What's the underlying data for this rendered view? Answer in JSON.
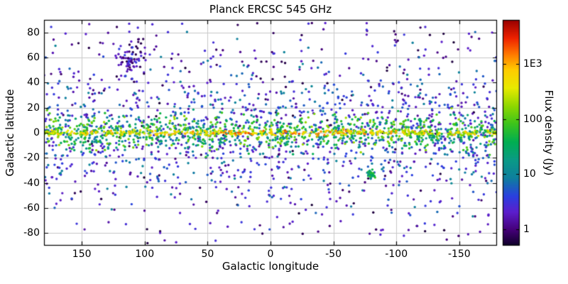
{
  "chart_data": {
    "type": "scatter",
    "title": "Planck ERCSC 545 GHz",
    "xlabel": "Galactic longitude",
    "ylabel": "Galactic latitude",
    "xlim": [
      180,
      -180
    ],
    "ylim": [
      -90,
      90
    ],
    "grid": true,
    "grid_color": "#c8c8c8",
    "frame_color": "#000000",
    "background_color": "#ffffff",
    "x_ticks": [
      {
        "label": "150",
        "value": 150
      },
      {
        "label": "100",
        "value": 100
      },
      {
        "label": "50",
        "value": 50
      },
      {
        "label": "0",
        "value": 0
      },
      {
        "label": "-50",
        "value": -50
      },
      {
        "label": "-100",
        "value": -100
      },
      {
        "label": "-150",
        "value": -150
      }
    ],
    "y_ticks": [
      {
        "label": "80",
        "value": 80
      },
      {
        "label": "60",
        "value": 60
      },
      {
        "label": "40",
        "value": 40
      },
      {
        "label": "20",
        "value": 20
      },
      {
        "label": "0",
        "value": 0
      },
      {
        "label": "-20",
        "value": -20
      },
      {
        "label": "-40",
        "value": -40
      },
      {
        "label": "-60",
        "value": -60
      },
      {
        "label": "-80",
        "value": -80
      }
    ],
    "colorbar": {
      "label": "Flux density (Jy)",
      "scale": "log",
      "log_range": [
        -0.3,
        3.8
      ],
      "ticks": [
        {
          "label": "1E3",
          "value": 1000
        },
        {
          "label": "100",
          "value": 100
        },
        {
          "label": "10",
          "value": 10
        },
        {
          "label": "1",
          "value": 1
        }
      ],
      "colormap_stops": [
        [
          0.0,
          "#0d0026"
        ],
        [
          0.07,
          "#440077"
        ],
        [
          0.15,
          "#5c1ecc"
        ],
        [
          0.22,
          "#2a3fe0"
        ],
        [
          0.3,
          "#0e7f9e"
        ],
        [
          0.38,
          "#0a9a86"
        ],
        [
          0.46,
          "#00ae52"
        ],
        [
          0.54,
          "#3cc41c"
        ],
        [
          0.62,
          "#8fd800"
        ],
        [
          0.7,
          "#e8ea00"
        ],
        [
          0.78,
          "#ffcc00"
        ],
        [
          0.85,
          "#ff7700"
        ],
        [
          0.92,
          "#ee2200"
        ],
        [
          1.0,
          "#990000"
        ]
      ]
    },
    "points": {
      "description": "Planck Early Release Compact Source Catalogue sources at 545 GHz in galactic coordinates, colored by log flux density. Bright (yellow/orange/red, >100 Jy) sources concentrated in the galactic plane |b|<2; green 10-100 Jy sources in a thick disk |b|<20; blue 1-10 Jy sources widespread; faint purple <1 Jy sources sparse at high latitude; a compact green cluster (LMC) near lon -80, lat -33; a dense faint purple clump near lon 112, lat 60.",
      "seed": 42,
      "marker_radius": 1.7,
      "groups": [
        {
          "name": "halo-faint-purple",
          "count": 430,
          "lon": {
            "dist": "uniform",
            "min": -180,
            "max": 180
          },
          "lat": {
            "dist": "uniform",
            "min": -88,
            "max": 88
          },
          "flux_log": {
            "min": -0.25,
            "max": 0.55
          }
        },
        {
          "name": "disk-blue",
          "count": 1150,
          "lon": {
            "dist": "uniform",
            "min": -180,
            "max": 180
          },
          "lat": {
            "dist": "normal",
            "mean": 0,
            "sigma": 28,
            "clip": 88
          },
          "flux_log": {
            "min": 0.15,
            "max": 1.05
          }
        },
        {
          "name": "nep-purple-clump",
          "count": 80,
          "lon": {
            "dist": "normal",
            "mean": 112,
            "sigma": 7,
            "clip_min": 90,
            "clip_max": 135
          },
          "lat": {
            "dist": "normal",
            "mean": 60,
            "sigma": 7,
            "clip": 85
          },
          "flux_log": {
            "min": -0.2,
            "max": 0.6
          }
        },
        {
          "name": "thick-disk-green",
          "count": 900,
          "lon": {
            "dist": "uniform",
            "min": -180,
            "max": 180
          },
          "lat": {
            "dist": "normal",
            "mean": 0,
            "sigma": 6.5,
            "clip": 22
          },
          "flux_log": {
            "min": 1.0,
            "max": 2.3
          }
        },
        {
          "name": "lmc-cluster",
          "count": 40,
          "lon": {
            "dist": "normal",
            "mean": -80,
            "sigma": 1.8,
            "clip_min": -90,
            "clip_max": -70
          },
          "lat": {
            "dist": "normal",
            "mean": -33,
            "sigma": 1.5,
            "clip": 40
          },
          "flux_log": {
            "min": 1.0,
            "max": 2.0
          }
        },
        {
          "name": "galactic-plane-bright",
          "count": 380,
          "lon": {
            "dist": "uniform",
            "min": -180,
            "max": 180
          },
          "lat": {
            "dist": "normal",
            "mean": 0,
            "sigma": 1.1,
            "clip": 5
          },
          "flux_log": {
            "min": 2.4,
            "max": 3.4
          },
          "flux_lon_falloff": 0.5
        }
      ]
    }
  }
}
